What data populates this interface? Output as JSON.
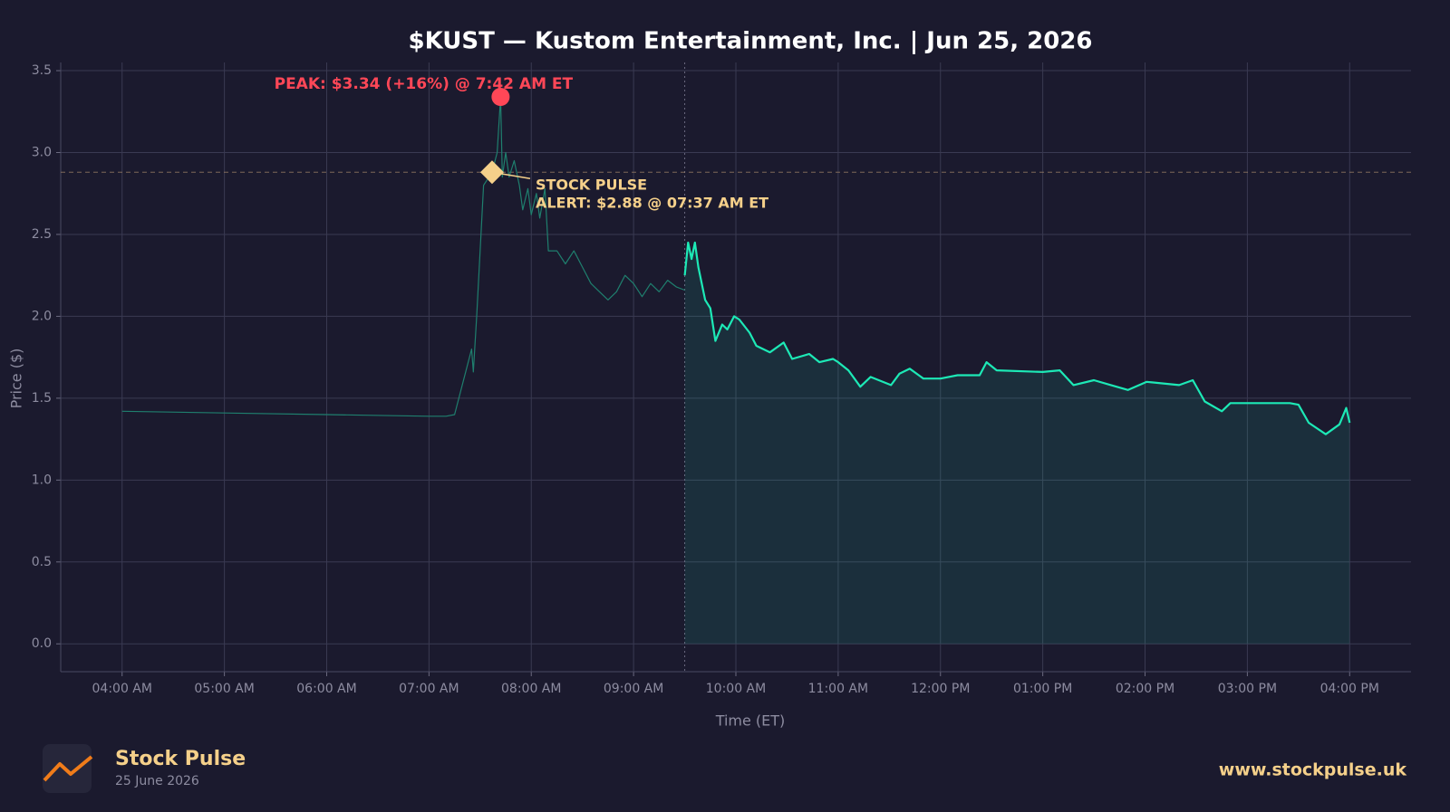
{
  "chart_data": {
    "type": "line",
    "title": "$KUST — Kustom Entertainment, Inc.  |  Jun 25, 2026",
    "xlabel": "Time (ET)",
    "ylabel": "Price ($)",
    "xlim": [
      204,
      996
    ],
    "ylim": [
      -0.17,
      3.55
    ],
    "xticks": [
      {
        "value": 240,
        "label": "04:00 AM"
      },
      {
        "value": 300,
        "label": "05:00 AM"
      },
      {
        "value": 360,
        "label": "06:00 AM"
      },
      {
        "value": 420,
        "label": "07:00 AM"
      },
      {
        "value": 480,
        "label": "08:00 AM"
      },
      {
        "value": 540,
        "label": "09:00 AM"
      },
      {
        "value": 600,
        "label": "10:00 AM"
      },
      {
        "value": 660,
        "label": "11:00 AM"
      },
      {
        "value": 720,
        "label": "12:00 PM"
      },
      {
        "value": 780,
        "label": "01:00 PM"
      },
      {
        "value": 840,
        "label": "02:00 PM"
      },
      {
        "value": 900,
        "label": "03:00 PM"
      },
      {
        "value": 960,
        "label": "04:00 PM"
      }
    ],
    "yticks": [
      {
        "value": 0,
        "label": "0.0"
      },
      0.5,
      {
        "value": 1,
        "label": "1.0"
      },
      1.5,
      {
        "value": 2,
        "label": "2.0"
      },
      2.5,
      {
        "value": 3,
        "label": "3.0"
      },
      3.5
    ],
    "grid": true,
    "series": [
      {
        "color": "#1f7f6e",
        "width": 1.2,
        "fill": false,
        "x": [
          240,
          300,
          360,
          420,
          430,
          435,
          440,
          445,
          446,
          448,
          450,
          452,
          457,
          460,
          462,
          463,
          465,
          467,
          470,
          473,
          475,
          478,
          480,
          483,
          485,
          488,
          490,
          495,
          500,
          505,
          510,
          515,
          520,
          525,
          530,
          535,
          540,
          545,
          550,
          555,
          560,
          565,
          570
        ],
        "values": [
          1.42,
          1.41,
          1.4,
          1.39,
          1.39,
          1.4,
          1.6,
          1.8,
          1.66,
          2.0,
          2.4,
          2.8,
          2.88,
          3.0,
          3.34,
          2.85,
          3.0,
          2.85,
          2.95,
          2.8,
          2.65,
          2.78,
          2.62,
          2.75,
          2.6,
          2.78,
          2.4,
          2.4,
          2.32,
          2.4,
          2.3,
          2.2,
          2.15,
          2.1,
          2.15,
          2.25,
          2.2,
          2.12,
          2.2,
          2.15,
          2.22,
          2.18,
          2.16
        ]
      },
      {
        "color": "#1de9b6",
        "width": 2.2,
        "fill": true,
        "x": [
          570,
          572,
          574,
          576,
          578,
          582,
          585,
          588,
          592,
          595,
          599,
          602,
          608,
          612,
          620,
          628,
          633,
          643,
          649,
          657,
          660,
          666,
          673,
          679,
          691,
          696,
          702,
          710,
          720,
          730,
          743,
          747,
          753,
          780,
          790,
          798,
          810,
          820,
          830,
          841,
          860,
          868,
          875,
          885,
          890,
          925,
          930,
          936,
          946,
          954,
          958,
          960
        ],
        "values": [
          2.25,
          2.45,
          2.35,
          2.45,
          2.3,
          2.1,
          2.05,
          1.85,
          1.95,
          1.92,
          2.0,
          1.98,
          1.9,
          1.82,
          1.78,
          1.84,
          1.74,
          1.77,
          1.72,
          1.74,
          1.72,
          1.67,
          1.57,
          1.63,
          1.58,
          1.65,
          1.68,
          1.62,
          1.62,
          1.64,
          1.64,
          1.72,
          1.67,
          1.66,
          1.67,
          1.58,
          1.61,
          1.58,
          1.55,
          1.6,
          1.58,
          1.61,
          1.48,
          1.42,
          1.47,
          1.47,
          1.46,
          1.35,
          1.28,
          1.34,
          1.44,
          1.35
        ]
      }
    ],
    "session_start": 570,
    "peak": {
      "x": 462,
      "y": 3.34,
      "color": "#ff4757",
      "label": "PEAK: $3.34 (+16%) @ 7:42 AM ET"
    },
    "alert": {
      "x": 457,
      "y": 2.88,
      "color": "#f5d08a",
      "label": [
        "STOCK PULSE",
        "ALERT: $2.88 @ 07:37 AM ET"
      ]
    }
  },
  "footer": {
    "brand": "Stock Pulse",
    "date": "25 June 2026",
    "url": "www.stockpulse.uk"
  }
}
